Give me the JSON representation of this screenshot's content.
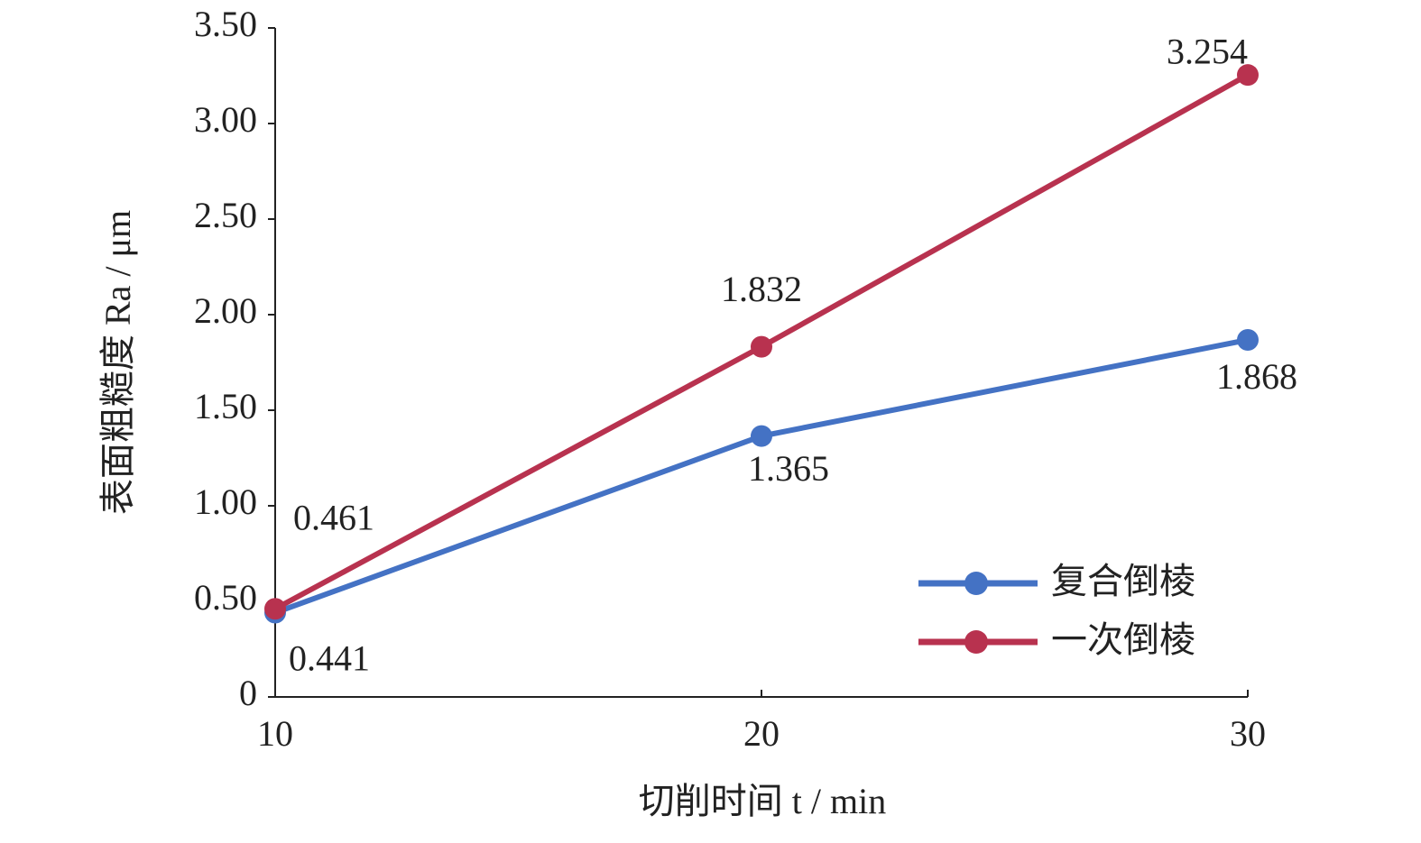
{
  "chart_data": {
    "type": "line",
    "xlabel": "切削时间 t / min",
    "ylabel": "表面粗糙度 Ra / μm",
    "x": [
      10,
      20,
      30
    ],
    "series": [
      {
        "name": "复合倒棱",
        "color": "#4472c4",
        "values": [
          0.441,
          1.365,
          1.868
        ]
      },
      {
        "name": "一次倒棱",
        "color": "#b8324f",
        "values": [
          0.461,
          1.832,
          3.254
        ]
      }
    ],
    "xlim": [
      10,
      30
    ],
    "xticks": [
      10,
      20,
      30
    ],
    "ylim": [
      0,
      3.5
    ],
    "yticks": [
      0,
      {
        "value": 0.5,
        "label": "0.50"
      },
      {
        "value": 1,
        "label": "1.00"
      },
      {
        "value": 1.5,
        "label": "1.50"
      },
      {
        "value": 2,
        "label": "2.00"
      },
      {
        "value": 2.5,
        "label": "2.50"
      },
      {
        "value": 3,
        "label": "3.00"
      },
      {
        "value": 3.5,
        "label": "3.50"
      }
    ],
    "grid": false,
    "legend": "lower right"
  }
}
